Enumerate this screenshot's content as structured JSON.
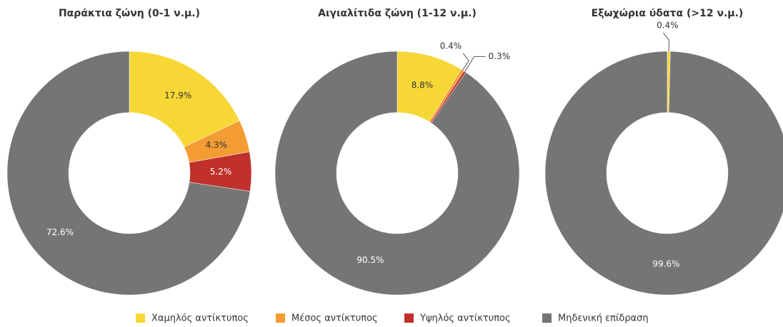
{
  "legend": {
    "labels": [
      "Χαμηλός αντίκτυπος",
      "Μέσος αντίκτυπος",
      "Υψηλός αντίκτυπος",
      "Μηδενική επίδραση"
    ],
    "colors": [
      "#f7d736",
      "#f39c34",
      "#c0312b",
      "#757575"
    ]
  },
  "chart_data": [
    {
      "type": "pie",
      "title": "Παράκτια ζώνη (0-1 ν.μ.)",
      "values": [
        17.9,
        4.3,
        5.2,
        72.6
      ],
      "value_labels": [
        "17.9%",
        "4.3%",
        "5.2%",
        "72.6%"
      ]
    },
    {
      "type": "pie",
      "title": "Αιγιαλίτιδα ζώνη (1-12 ν.μ.)",
      "values": [
        8.8,
        0.4,
        0.3,
        90.5
      ],
      "value_labels": [
        "8.8%",
        "0.4%",
        "0.3%",
        "90.5%"
      ]
    },
    {
      "type": "pie",
      "title": "Εξωχώρια ύδατα (>12 ν.μ.)",
      "values": [
        0.4,
        0,
        0,
        99.6
      ],
      "value_labels": [
        "0.4%",
        null,
        null,
        "99.6%"
      ]
    }
  ]
}
